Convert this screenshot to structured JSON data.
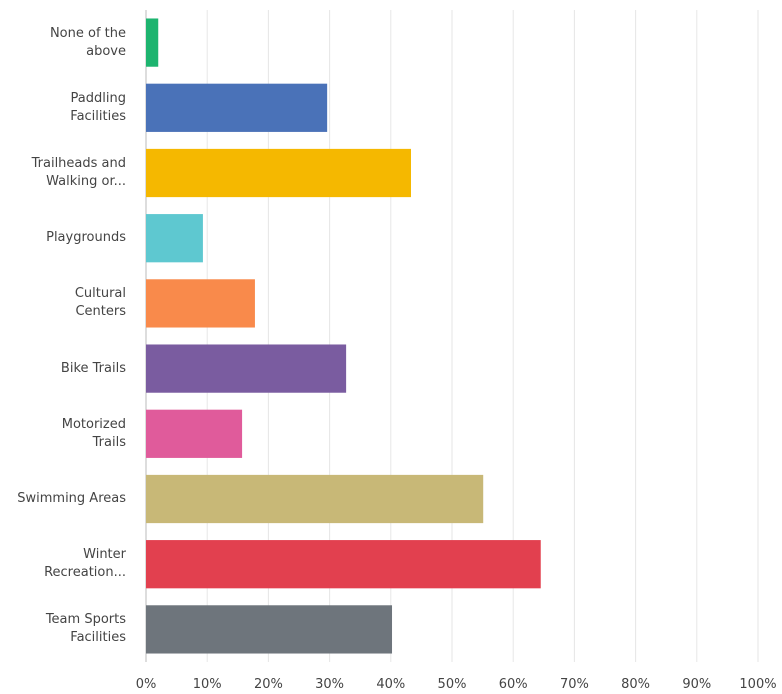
{
  "chart_data": {
    "type": "barh",
    "categories": [
      "None of the\nabove",
      "Paddling\nFacilities",
      "Trailheads and\nWalking or...",
      "Playgrounds",
      "Cultural\nCenters",
      "Bike Trails",
      "Motorized\nTrails",
      "Swimming Areas",
      "Winter\nRecreation...",
      "Team Sports\nFacilities"
    ],
    "values": [
      2,
      29.6,
      43.3,
      9.3,
      17.8,
      32.7,
      15.7,
      55.1,
      64.5,
      40.2
    ],
    "colors": [
      "#1db46f",
      "#4a72b8",
      "#f5b800",
      "#5ec8d0",
      "#f98a4b",
      "#7a5ca0",
      "#e05b9b",
      "#c8b877",
      "#e2404f",
      "#6e757c"
    ],
    "xlim": [
      0,
      100
    ],
    "xticks": [
      {
        "value": 0,
        "label": "0%"
      },
      {
        "value": 10,
        "label": "10%"
      },
      {
        "value": 20,
        "label": "20%"
      },
      {
        "value": 30,
        "label": "30%"
      },
      {
        "value": 40,
        "label": "40%"
      },
      {
        "value": 50,
        "label": "50%"
      },
      {
        "value": 60,
        "label": "60%"
      },
      {
        "value": 70,
        "label": "70%"
      },
      {
        "value": 80,
        "label": "80%"
      },
      {
        "value": 90,
        "label": "90%"
      },
      {
        "value": 100,
        "label": "100%"
      }
    ],
    "grid": true
  }
}
